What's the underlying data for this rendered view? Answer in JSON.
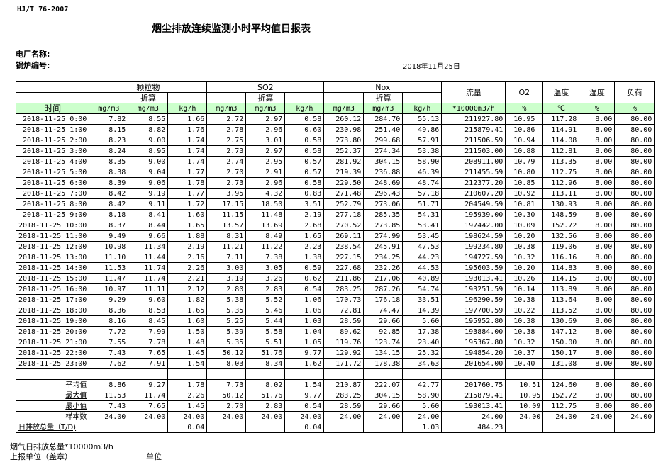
{
  "header": {
    "standard": "HJ/T  76-2007",
    "title": "烟尘排放连续监测小时平均值日报表",
    "plant_label": "电厂名称:",
    "boiler_label": "锅炉编号:",
    "date": "2018年11月25日"
  },
  "table": {
    "groups": {
      "pm": "颗粒物",
      "so2": "SO2",
      "nox": "Nox",
      "flow": "流量",
      "o2": "O2",
      "temp": "温度",
      "humidity": "湿度",
      "load": "负荷"
    },
    "converted": "折算",
    "time_label": "时间",
    "units": [
      "mg/m3",
      "mg/m3",
      "kg/h",
      "mg/m3",
      "mg/m3",
      "kg/h",
      "mg/m3",
      "mg/m3",
      "kg/h",
      "*10000m3/h",
      "%",
      "℃",
      "%",
      "%"
    ],
    "rows": [
      [
        "2018-11-25 0:00",
        "7.82",
        "8.55",
        "1.66",
        "2.72",
        "2.97",
        "0.58",
        "260.12",
        "284.70",
        "55.13",
        "211927.80",
        "10.95",
        "117.28",
        "8.00",
        "80.00"
      ],
      [
        "2018-11-25 1:00",
        "8.15",
        "8.82",
        "1.76",
        "2.78",
        "2.96",
        "0.60",
        "230.98",
        "251.40",
        "49.86",
        "215879.41",
        "10.86",
        "114.91",
        "8.00",
        "80.00"
      ],
      [
        "2018-11-25 2:00",
        "8.23",
        "9.00",
        "1.74",
        "2.75",
        "3.01",
        "0.58",
        "273.80",
        "299.68",
        "57.91",
        "211506.59",
        "10.94",
        "114.08",
        "8.00",
        "80.00"
      ],
      [
        "2018-11-25 3:00",
        "8.24",
        "8.95",
        "1.74",
        "2.73",
        "2.97",
        "0.58",
        "252.37",
        "274.34",
        "53.38",
        "211503.00",
        "10.88",
        "112.81",
        "8.00",
        "80.00"
      ],
      [
        "2018-11-25 4:00",
        "8.35",
        "9.00",
        "1.74",
        "2.74",
        "2.95",
        "0.57",
        "281.92",
        "304.15",
        "58.90",
        "208911.00",
        "10.79",
        "113.35",
        "8.00",
        "80.00"
      ],
      [
        "2018-11-25 5:00",
        "8.38",
        "9.04",
        "1.77",
        "2.70",
        "2.91",
        "0.57",
        "219.39",
        "236.88",
        "46.39",
        "211455.59",
        "10.80",
        "112.75",
        "8.00",
        "80.00"
      ],
      [
        "2018-11-25 6:00",
        "8.39",
        "9.06",
        "1.78",
        "2.73",
        "2.96",
        "0.58",
        "229.50",
        "248.69",
        "48.74",
        "212377.20",
        "10.85",
        "112.96",
        "8.00",
        "80.00"
      ],
      [
        "2018-11-25 7:00",
        "8.42",
        "9.19",
        "1.77",
        "3.95",
        "4.32",
        "0.83",
        "271.48",
        "296.43",
        "57.18",
        "210607.20",
        "10.92",
        "113.11",
        "8.00",
        "80.00"
      ],
      [
        "2018-11-25 8:00",
        "8.42",
        "9.11",
        "1.72",
        "17.15",
        "18.50",
        "3.51",
        "252.79",
        "273.06",
        "51.71",
        "204549.59",
        "10.81",
        "130.93",
        "8.00",
        "80.00"
      ],
      [
        "2018-11-25 9:00",
        "8.18",
        "8.41",
        "1.60",
        "11.15",
        "11.48",
        "2.19",
        "277.18",
        "285.35",
        "54.31",
        "195939.00",
        "10.30",
        "148.59",
        "8.00",
        "80.00"
      ],
      [
        "2018-11-25 10:00",
        "8.37",
        "8.44",
        "1.65",
        "13.57",
        "13.69",
        "2.68",
        "270.52",
        "273.85",
        "53.41",
        "197442.00",
        "10.09",
        "152.72",
        "8.00",
        "80.00"
      ],
      [
        "2018-11-25 11:00",
        "9.49",
        "9.66",
        "1.88",
        "8.31",
        "8.49",
        "1.65",
        "269.11",
        "274.99",
        "53.45",
        "198624.59",
        "10.20",
        "132.56",
        "8.00",
        "80.00"
      ],
      [
        "2018-11-25 12:00",
        "10.98",
        "11.34",
        "2.19",
        "11.21",
        "11.22",
        "2.23",
        "238.54",
        "245.91",
        "47.53",
        "199234.80",
        "10.38",
        "119.06",
        "8.00",
        "80.00"
      ],
      [
        "2018-11-25 13:00",
        "11.10",
        "11.44",
        "2.16",
        "7.11",
        "7.38",
        "1.38",
        "227.15",
        "234.25",
        "44.23",
        "194727.59",
        "10.32",
        "116.16",
        "8.00",
        "80.00"
      ],
      [
        "2018-11-25 14:00",
        "11.53",
        "11.74",
        "2.26",
        "3.00",
        "3.05",
        "0.59",
        "227.68",
        "232.26",
        "44.53",
        "195603.59",
        "10.20",
        "114.83",
        "8.00",
        "80.00"
      ],
      [
        "2018-11-25 15:00",
        "11.47",
        "11.74",
        "2.21",
        "3.19",
        "3.26",
        "0.62",
        "211.86",
        "217.06",
        "40.89",
        "193013.41",
        "10.26",
        "114.15",
        "8.00",
        "80.00"
      ],
      [
        "2018-11-25 16:00",
        "10.97",
        "11.11",
        "2.12",
        "2.80",
        "2.83",
        "0.54",
        "283.25",
        "287.26",
        "54.74",
        "193251.59",
        "10.14",
        "113.89",
        "8.00",
        "80.00"
      ],
      [
        "2018-11-25 17:00",
        "9.29",
        "9.60",
        "1.82",
        "5.38",
        "5.52",
        "1.06",
        "170.73",
        "176.18",
        "33.51",
        "196290.59",
        "10.38",
        "113.64",
        "8.00",
        "80.00"
      ],
      [
        "2018-11-25 18:00",
        "8.36",
        "8.53",
        "1.65",
        "5.35",
        "5.46",
        "1.06",
        "72.81",
        "74.47",
        "14.39",
        "197700.59",
        "10.22",
        "113.52",
        "8.00",
        "80.00"
      ],
      [
        "2018-11-25 19:00",
        "8.16",
        "8.45",
        "1.60",
        "5.25",
        "5.44",
        "1.03",
        "28.59",
        "29.66",
        "5.60",
        "195952.80",
        "10.38",
        "130.69",
        "8.00",
        "80.00"
      ],
      [
        "2018-11-25 20:00",
        "7.72",
        "7.99",
        "1.50",
        "5.39",
        "5.58",
        "1.04",
        "89.62",
        "92.85",
        "17.38",
        "193884.00",
        "10.38",
        "147.12",
        "8.00",
        "80.00"
      ],
      [
        "2018-11-25 21:00",
        "7.55",
        "7.78",
        "1.48",
        "5.35",
        "5.51",
        "1.05",
        "119.76",
        "123.74",
        "23.40",
        "195367.80",
        "10.32",
        "150.00",
        "8.00",
        "80.00"
      ],
      [
        "2018-11-25 22:00",
        "7.43",
        "7.65",
        "1.45",
        "50.12",
        "51.76",
        "9.77",
        "129.92",
        "134.15",
        "25.32",
        "194854.20",
        "10.37",
        "150.17",
        "8.00",
        "80.00"
      ],
      [
        "2018-11-25 23:00",
        "7.62",
        "7.91",
        "1.54",
        "8.03",
        "8.34",
        "1.62",
        "171.72",
        "178.38",
        "34.63",
        "201654.00",
        "10.40",
        "131.08",
        "8.00",
        "80.00"
      ]
    ],
    "summary": [
      [
        "平均值",
        "8.86",
        "9.27",
        "1.78",
        "7.73",
        "8.02",
        "1.54",
        "210.87",
        "222.07",
        "42.77",
        "201760.75",
        "10.51",
        "124.60",
        "8.00",
        "80.00"
      ],
      [
        "最大值",
        "11.53",
        "11.74",
        "2.26",
        "50.12",
        "51.76",
        "9.77",
        "283.25",
        "304.15",
        "58.90",
        "215879.41",
        "10.95",
        "152.72",
        "8.00",
        "80.00"
      ],
      [
        "最小值",
        "7.43",
        "7.65",
        "1.45",
        "2.70",
        "2.83",
        "0.54",
        "28.59",
        "29.66",
        "5.60",
        "193013.41",
        "10.09",
        "112.75",
        "8.00",
        "80.00"
      ],
      [
        "样本数",
        "24.00",
        "24.00",
        "24.00",
        "24.00",
        "24.00",
        "24.00",
        "24.00",
        "24.00",
        "24.00",
        "24.00",
        "24.00",
        "24.00",
        "24.00",
        "24.00"
      ]
    ],
    "daily_total": [
      "日排放总量（T/D)",
      "",
      "",
      "0.04",
      "",
      "",
      "0.04",
      "",
      "",
      "1.03",
      "484.23",
      "",
      "",
      "",
      ""
    ]
  },
  "footer": {
    "flue_gas_total": "烟气日排放总量*10000m3/h",
    "reporting_unit": "上报单位（盖章）",
    "unit": "单位"
  }
}
